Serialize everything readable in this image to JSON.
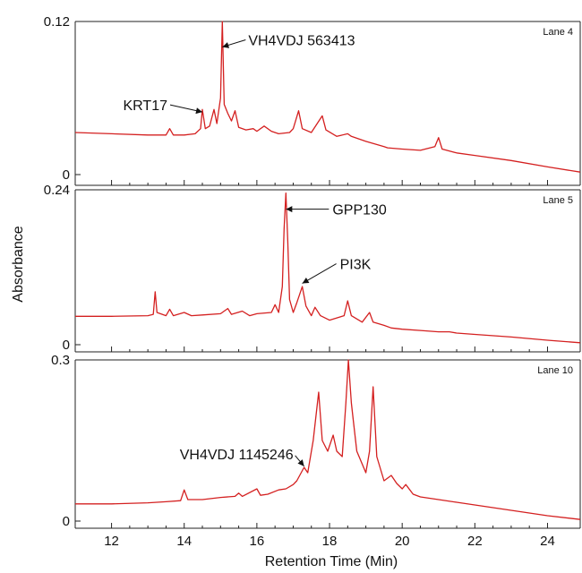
{
  "chart_data": {
    "type": "line",
    "xlabel": "Retention Time (Min)",
    "ylabel": "Absorbance",
    "xlim": [
      11,
      24.9
    ],
    "x_ticks": [
      "12",
      "14",
      "16",
      "18",
      "20",
      "22",
      "24"
    ],
    "line_color": "#d42020",
    "panels": [
      {
        "lane": "Lane 4",
        "ylim": [
          0,
          0.12
        ],
        "y_ticks": [
          "0",
          "0.12"
        ],
        "annotations": [
          {
            "label": "KRT17",
            "x": 14.5,
            "y": 0.049
          },
          {
            "label": "VH4VDJ 563413",
            "x": 15.05,
            "y": 0.1
          }
        ],
        "trace": [
          [
            11.0,
            0.033
          ],
          [
            12.0,
            0.032
          ],
          [
            13.0,
            0.031
          ],
          [
            13.5,
            0.031
          ],
          [
            13.6,
            0.036
          ],
          [
            13.7,
            0.031
          ],
          [
            14.0,
            0.031
          ],
          [
            14.3,
            0.032
          ],
          [
            14.45,
            0.036
          ],
          [
            14.5,
            0.051
          ],
          [
            14.58,
            0.036
          ],
          [
            14.7,
            0.038
          ],
          [
            14.82,
            0.051
          ],
          [
            14.9,
            0.04
          ],
          [
            15.0,
            0.06
          ],
          [
            15.05,
            0.12
          ],
          [
            15.1,
            0.055
          ],
          [
            15.2,
            0.048
          ],
          [
            15.3,
            0.042
          ],
          [
            15.4,
            0.05
          ],
          [
            15.5,
            0.037
          ],
          [
            15.7,
            0.035
          ],
          [
            15.9,
            0.036
          ],
          [
            16.0,
            0.034
          ],
          [
            16.2,
            0.038
          ],
          [
            16.4,
            0.034
          ],
          [
            16.6,
            0.032
          ],
          [
            16.9,
            0.033
          ],
          [
            17.0,
            0.036
          ],
          [
            17.15,
            0.05
          ],
          [
            17.25,
            0.036
          ],
          [
            17.5,
            0.033
          ],
          [
            17.8,
            0.046
          ],
          [
            17.9,
            0.035
          ],
          [
            18.2,
            0.03
          ],
          [
            18.5,
            0.032
          ],
          [
            18.6,
            0.03
          ],
          [
            19.0,
            0.026
          ],
          [
            19.5,
            0.022
          ],
          [
            19.6,
            0.021
          ],
          [
            20.0,
            0.02
          ],
          [
            20.5,
            0.019
          ],
          [
            20.9,
            0.022
          ],
          [
            21.0,
            0.029
          ],
          [
            21.1,
            0.02
          ],
          [
            21.5,
            0.017
          ],
          [
            22.0,
            0.015
          ],
          [
            23.0,
            0.011
          ],
          [
            24.0,
            0.006
          ],
          [
            24.9,
            0.002
          ]
        ]
      },
      {
        "lane": "Lane 5",
        "ylim": [
          0,
          0.24
        ],
        "y_ticks": [
          "0",
          "0.24"
        ],
        "annotations": [
          {
            "label": "GPP130",
            "x": 16.8,
            "y": 0.21
          },
          {
            "label": "PI3K",
            "x": 17.25,
            "y": 0.095
          }
        ],
        "trace": [
          [
            11.0,
            0.044
          ],
          [
            12.0,
            0.044
          ],
          [
            13.0,
            0.045
          ],
          [
            13.15,
            0.047
          ],
          [
            13.2,
            0.082
          ],
          [
            13.25,
            0.05
          ],
          [
            13.5,
            0.045
          ],
          [
            13.6,
            0.055
          ],
          [
            13.7,
            0.045
          ],
          [
            14.0,
            0.05
          ],
          [
            14.2,
            0.045
          ],
          [
            14.5,
            0.046
          ],
          [
            15.0,
            0.048
          ],
          [
            15.2,
            0.056
          ],
          [
            15.3,
            0.047
          ],
          [
            15.6,
            0.052
          ],
          [
            15.8,
            0.045
          ],
          [
            16.0,
            0.048
          ],
          [
            16.4,
            0.05
          ],
          [
            16.5,
            0.062
          ],
          [
            16.6,
            0.05
          ],
          [
            16.7,
            0.09
          ],
          [
            16.75,
            0.18
          ],
          [
            16.8,
            0.235
          ],
          [
            16.85,
            0.16
          ],
          [
            16.9,
            0.07
          ],
          [
            17.0,
            0.05
          ],
          [
            17.1,
            0.065
          ],
          [
            17.25,
            0.09
          ],
          [
            17.35,
            0.06
          ],
          [
            17.5,
            0.045
          ],
          [
            17.6,
            0.058
          ],
          [
            17.75,
            0.045
          ],
          [
            18.0,
            0.038
          ],
          [
            18.4,
            0.045
          ],
          [
            18.5,
            0.068
          ],
          [
            18.6,
            0.045
          ],
          [
            18.9,
            0.035
          ],
          [
            19.1,
            0.05
          ],
          [
            19.2,
            0.035
          ],
          [
            19.5,
            0.03
          ],
          [
            19.7,
            0.026
          ],
          [
            20.0,
            0.024
          ],
          [
            20.5,
            0.022
          ],
          [
            21.0,
            0.02
          ],
          [
            21.3,
            0.02
          ],
          [
            21.5,
            0.018
          ],
          [
            22.0,
            0.016
          ],
          [
            23.0,
            0.012
          ],
          [
            24.0,
            0.007
          ],
          [
            24.9,
            0.003
          ]
        ]
      },
      {
        "lane": "Lane 10",
        "ylim": [
          0,
          0.3
        ],
        "y_ticks": [
          "0",
          "0.3"
        ],
        "annotations": [
          {
            "label": "VH4VDJ 1145246",
            "x": 17.3,
            "y": 0.102
          }
        ],
        "trace": [
          [
            11.0,
            0.032
          ],
          [
            12.0,
            0.032
          ],
          [
            13.0,
            0.034
          ],
          [
            13.5,
            0.036
          ],
          [
            13.9,
            0.038
          ],
          [
            14.0,
            0.058
          ],
          [
            14.1,
            0.04
          ],
          [
            14.5,
            0.04
          ],
          [
            15.0,
            0.044
          ],
          [
            15.4,
            0.046
          ],
          [
            15.5,
            0.052
          ],
          [
            15.6,
            0.046
          ],
          [
            16.0,
            0.06
          ],
          [
            16.1,
            0.048
          ],
          [
            16.3,
            0.05
          ],
          [
            16.6,
            0.058
          ],
          [
            16.8,
            0.06
          ],
          [
            17.0,
            0.068
          ],
          [
            17.1,
            0.075
          ],
          [
            17.3,
            0.1
          ],
          [
            17.4,
            0.09
          ],
          [
            17.55,
            0.15
          ],
          [
            17.7,
            0.24
          ],
          [
            17.8,
            0.15
          ],
          [
            17.95,
            0.13
          ],
          [
            18.1,
            0.16
          ],
          [
            18.2,
            0.13
          ],
          [
            18.35,
            0.12
          ],
          [
            18.45,
            0.22
          ],
          [
            18.52,
            0.3
          ],
          [
            18.6,
            0.22
          ],
          [
            18.65,
            0.19
          ],
          [
            18.75,
            0.13
          ],
          [
            19.0,
            0.09
          ],
          [
            19.1,
            0.13
          ],
          [
            19.2,
            0.25
          ],
          [
            19.3,
            0.12
          ],
          [
            19.5,
            0.075
          ],
          [
            19.7,
            0.085
          ],
          [
            19.85,
            0.07
          ],
          [
            20.0,
            0.06
          ],
          [
            20.1,
            0.068
          ],
          [
            20.3,
            0.05
          ],
          [
            20.5,
            0.045
          ],
          [
            21.0,
            0.04
          ],
          [
            21.5,
            0.035
          ],
          [
            22.0,
            0.03
          ],
          [
            23.0,
            0.02
          ],
          [
            24.0,
            0.01
          ],
          [
            24.9,
            0.003
          ]
        ]
      }
    ]
  }
}
